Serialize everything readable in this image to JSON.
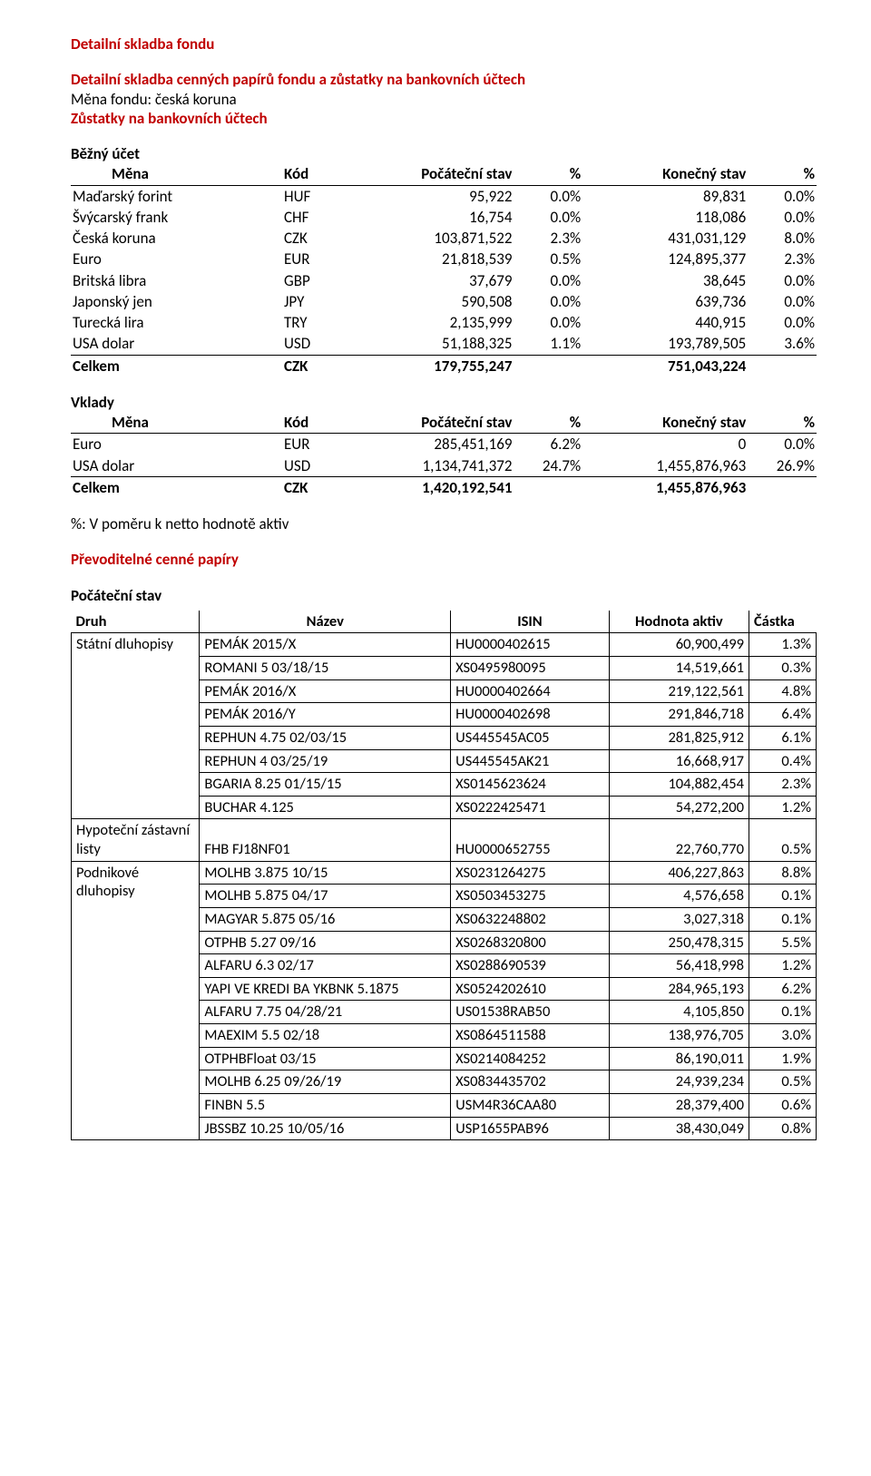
{
  "titles": {
    "main": "Detailní skladba fondu",
    "sub": "Detailní skladba cenných papírů fondu a zůstatky na bankovních účtech",
    "fund_currency": "Měna fondu: česká koruna",
    "balances": "Zůstatky na bankovních účtech",
    "current_account": "Běžný účet",
    "deposits": "Vklady",
    "ratio_note": "%: V poměru k netto hodnotě aktiv",
    "securities": "Převoditelné cenné papíry",
    "initial_state": "Počáteční stav"
  },
  "acct_headers": {
    "currency": "Měna",
    "code": "Kód",
    "start": "Počáteční stav",
    "pct": "%",
    "end": "Konečný stav"
  },
  "current": {
    "rows": [
      {
        "name": "Maďarský forint",
        "code": "HUF",
        "start": "95,922",
        "p1": "0.0%",
        "end": "89,831",
        "p2": "0.0%"
      },
      {
        "name": "Švýcarský frank",
        "code": "CHF",
        "start": "16,754",
        "p1": "0.0%",
        "end": "118,086",
        "p2": "0.0%"
      },
      {
        "name": "Česká koruna",
        "code": "CZK",
        "start": "103,871,522",
        "p1": "2.3%",
        "end": "431,031,129",
        "p2": "8.0%"
      },
      {
        "name": "Euro",
        "code": "EUR",
        "start": "21,818,539",
        "p1": "0.5%",
        "end": "124,895,377",
        "p2": "2.3%"
      },
      {
        "name": "Britská libra",
        "code": "GBP",
        "start": "37,679",
        "p1": "0.0%",
        "end": "38,645",
        "p2": "0.0%"
      },
      {
        "name": "Japonský jen",
        "code": "JPY",
        "start": "590,508",
        "p1": "0.0%",
        "end": "639,736",
        "p2": "0.0%"
      },
      {
        "name": "Turecká lira",
        "code": "TRY",
        "start": "2,135,999",
        "p1": "0.0%",
        "end": "440,915",
        "p2": "0.0%"
      },
      {
        "name": "USA dolar",
        "code": "USD",
        "start": "51,188,325",
        "p1": "1.1%",
        "end": "193,789,505",
        "p2": "3.6%"
      }
    ],
    "total": {
      "name": "Celkem",
      "code": "CZK",
      "start": "179,755,247",
      "end": "751,043,224"
    }
  },
  "deposits": {
    "rows": [
      {
        "name": "Euro",
        "code": "EUR",
        "start": "285,451,169",
        "p1": "6.2%",
        "end": "0",
        "p2": "0.0%"
      },
      {
        "name": "USA dolar",
        "code": "USD",
        "start": "1,134,741,372",
        "p1": "24.7%",
        "end": "1,455,876,963",
        "p2": "26.9%"
      }
    ],
    "total": {
      "name": "Celkem",
      "code": "CZK",
      "start": "1,420,192,541",
      "end": "1,455,876,963"
    }
  },
  "sec_headers": {
    "druh": "Druh",
    "nazev": "Název",
    "isin": "ISIN",
    "val": "Hodnota aktiv",
    "pct": "Částka"
  },
  "securities": [
    {
      "cat": "Státní dluhopisy",
      "rows": [
        {
          "n": "PEMÁK 2015/X",
          "i": "HU0000402615",
          "v": "60,900,499",
          "p": "1.3%"
        },
        {
          "n": "ROMANI 5 03/18/15",
          "i": "XS0495980095",
          "v": "14,519,661",
          "p": "0.3%"
        },
        {
          "n": "PEMÁK 2016/X",
          "i": "HU0000402664",
          "v": "219,122,561",
          "p": "4.8%"
        },
        {
          "n": "PEMÁK 2016/Y",
          "i": "HU0000402698",
          "v": "291,846,718",
          "p": "6.4%"
        },
        {
          "n": "REPHUN 4.75 02/03/15",
          "i": "US445545AC05",
          "v": "281,825,912",
          "p": "6.1%"
        },
        {
          "n": "REPHUN 4 03/25/19",
          "i": "US445545AK21",
          "v": "16,668,917",
          "p": "0.4%"
        },
        {
          "n": "BGARIA 8.25 01/15/15",
          "i": "XS0145623624",
          "v": "104,882,454",
          "p": "2.3%"
        },
        {
          "n": "BUCHAR 4.125",
          "i": "XS0222425471",
          "v": "54,272,200",
          "p": "1.2%"
        }
      ]
    },
    {
      "cat": "Hypoteční zástavní listy",
      "rows": [
        {
          "n": "FHB FJ18NF01",
          "i": "HU0000652755",
          "v": "22,760,770",
          "p": "0.5%"
        }
      ]
    },
    {
      "cat": "Podnikové dluhopisy",
      "rows": [
        {
          "n": "MOLHB 3.875 10/15",
          "i": "XS0231264275",
          "v": "406,227,863",
          "p": "8.8%"
        },
        {
          "n": "MOLHB 5.875 04/17",
          "i": "XS0503453275",
          "v": "4,576,658",
          "p": "0.1%"
        },
        {
          "n": "MAGYAR 5.875 05/16",
          "i": "XS0632248802",
          "v": "3,027,318",
          "p": "0.1%"
        },
        {
          "n": "OTPHB 5.27 09/16",
          "i": "XS0268320800",
          "v": "250,478,315",
          "p": "5.5%"
        },
        {
          "n": "ALFARU 6.3 02/17",
          "i": "XS0288690539",
          "v": "56,418,998",
          "p": "1.2%"
        },
        {
          "n": "YAPI VE KREDI BA YKBNK 5.1875",
          "i": "XS0524202610",
          "v": "284,965,193",
          "p": "6.2%"
        },
        {
          "n": "ALFARU 7.75 04/28/21",
          "i": "US01538RAB50",
          "v": "4,105,850",
          "p": "0.1%"
        },
        {
          "n": "MAEXIM 5.5 02/18",
          "i": "XS0864511588",
          "v": "138,976,705",
          "p": "3.0%"
        },
        {
          "n": "OTPHBFloat 03/15",
          "i": "XS0214084252",
          "v": "86,190,011",
          "p": "1.9%"
        },
        {
          "n": "MOLHB 6.25 09/26/19",
          "i": "XS0834435702",
          "v": "24,939,234",
          "p": "0.5%"
        },
        {
          "n": "FINBN 5.5",
          "i": "USM4R36CAA80",
          "v": "28,379,400",
          "p": "0.6%"
        },
        {
          "n": "JBSSBZ 10.25 10/05/16",
          "i": "USP1655PAB96",
          "v": "38,430,049",
          "p": "0.8%"
        }
      ]
    }
  ]
}
